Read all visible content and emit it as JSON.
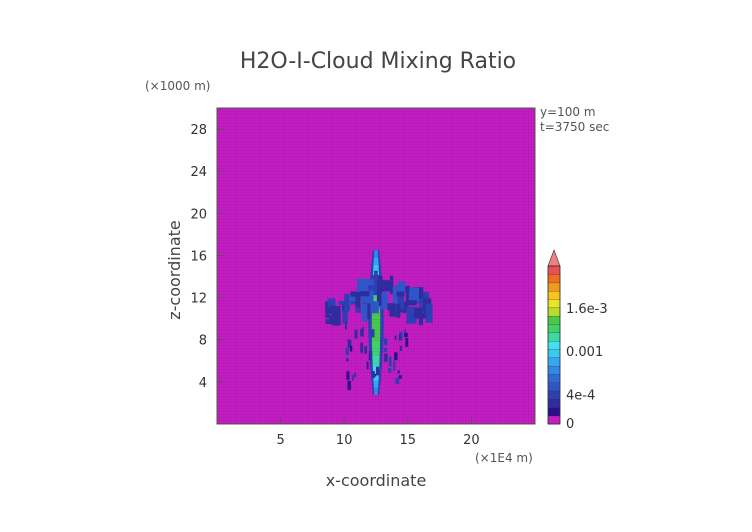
{
  "chart_data": {
    "type": "heatmap",
    "title": "H2O-I-Cloud Mixing Ratio",
    "xlabel": "x-coordinate",
    "ylabel": "z-coordinate",
    "x_unit": "(×1E4 m)",
    "y_unit": "(×1000 m)",
    "xlim": [
      0,
      25
    ],
    "ylim": [
      0,
      30
    ],
    "x_ticks": [
      5,
      10,
      15,
      20
    ],
    "y_ticks": [
      4,
      8,
      12,
      16,
      20,
      24,
      28
    ],
    "info": [
      "y=100 m",
      "t=3750 sec"
    ],
    "colorbar": {
      "tick_labels": [
        "0",
        "4e-4",
        "0.001",
        "1.6e-3"
      ],
      "tick_values": [
        0,
        0.0004,
        0.001,
        0.0016
      ],
      "max": 0.0022,
      "extend": "max",
      "colors": [
        "#c21ec2",
        "#2a0e8e",
        "#2d2d9e",
        "#2d3fb2",
        "#2f55c6",
        "#2f6bd6",
        "#3188e6",
        "#36a6f2",
        "#3cc7f7",
        "#3fe2f0",
        "#3ed9a0",
        "#3fd26a",
        "#49c84a",
        "#b8dc2e",
        "#e8e628",
        "#f7c51e",
        "#f49a1c",
        "#ef6f20",
        "#ea5050",
        "#f08080"
      ]
    },
    "background_value": 0,
    "field_features": [
      {
        "shape": "column",
        "x": 12.5,
        "z_bottom": 2.8,
        "z_top": 16.5,
        "half_width": 0.28,
        "peak_value": 0.0014
      },
      {
        "shape": "anvil",
        "x_left": 8.5,
        "x_right": 16.5,
        "z_center": 11.2,
        "z_half_height": 1.8,
        "peak_value": 0.0006
      },
      {
        "shape": "lower_streaks",
        "x_left": 10.0,
        "x_right": 15.0,
        "z_bottom": 3.2,
        "z_top": 9.0,
        "peak_value": 0.0003
      }
    ]
  }
}
